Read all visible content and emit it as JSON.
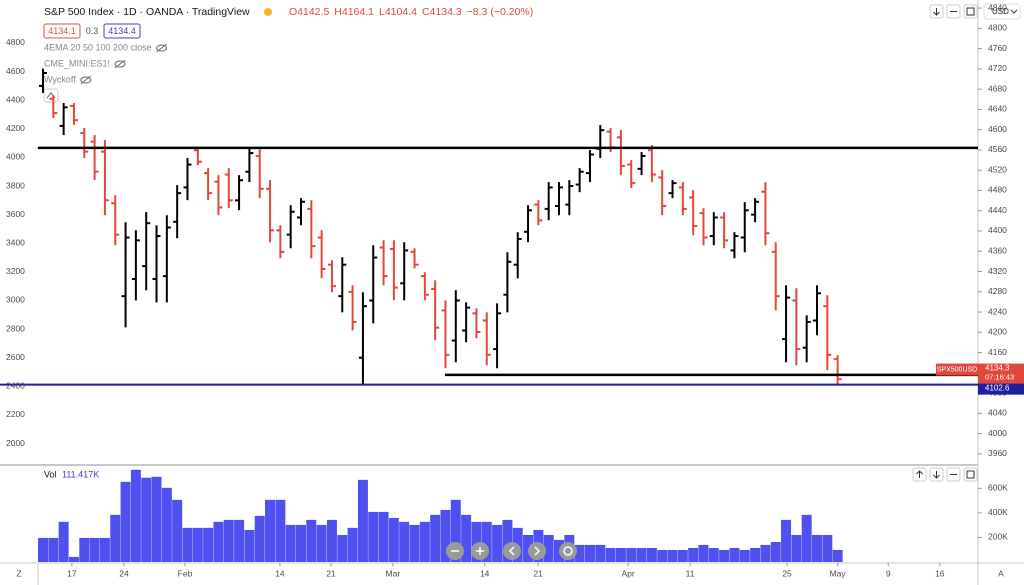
{
  "chart_data": [
    {
      "type": "ohlc",
      "title": "S&P 500 Index · 1D · OANDA · TradingView",
      "legend_values": [
        "O4142.5",
        "H4164.1",
        "L4104.4",
        "C4134.3",
        "−8.3 (−0.20%)"
      ],
      "bid": "4134.1",
      "spread": "0.3",
      "ask": "4134.4",
      "indicators": [
        "4EMA 20 50 100 200 close",
        "CME_MINI:ES1!",
        "Wyckoff"
      ],
      "currency": "USD",
      "up_color": "#000000",
      "down_color": "#e0483e",
      "high": [
        4620,
        4436,
        4380,
        4380,
        4205,
        4156,
        4121,
        3736,
        3547,
        3491,
        3617,
        3526,
        3596,
        3806,
        3995,
        4072,
        3925,
        3876,
        3925,
        3876,
        4065,
        4065,
        3841,
        3526,
        3666,
        3715,
        3701,
        3491,
        3281,
        3302,
        3106,
        3057,
        3386,
        3421,
        3421,
        3407,
        3365,
        3197,
        3141,
        3001,
        3071,
        2987,
        2945,
        2917,
        2980,
        3337,
        3477,
        3666,
        3701,
        3827,
        3827,
        3841,
        3925,
        4051,
        4226,
        4205,
        4191,
        3981,
        4037,
        4086,
        3911,
        3841,
        3827,
        3771,
        3645,
        3617,
        3617,
        3477,
        3687,
        3715,
        3827,
        3407,
        3106,
        3085,
        2896,
        3106,
        3036,
        2617
      ],
      "low": [
        4450,
        4275,
        4156,
        4226,
        3995,
        3841,
        3596,
        3386,
        2812,
        3001,
        3071,
        2987,
        2987,
        3435,
        3701,
        3946,
        3701,
        3596,
        3645,
        3631,
        3827,
        3715,
        3407,
        3295,
        3365,
        3526,
        3295,
        3155,
        3057,
        2917,
        2791,
        2406,
        2840,
        3106,
        3001,
        3001,
        3225,
        3001,
        2722,
        2526,
        2568,
        2708,
        2736,
        2547,
        2526,
        2917,
        3155,
        3407,
        3526,
        3561,
        3596,
        3596,
        3757,
        3827,
        3995,
        4037,
        3876,
        3785,
        3876,
        3827,
        3596,
        3715,
        3596,
        3456,
        3386,
        3386,
        3365,
        3295,
        3337,
        3547,
        3386,
        2931,
        2568,
        2547,
        2568,
        2757,
        2513,
        2406
      ],
      "open": [
        4500,
        4410,
        4220,
        4360,
        4170,
        4110,
        4040,
        3680,
        3030,
        3150,
        3240,
        3150,
        3170,
        3550,
        3790,
        4050,
        3890,
        3830,
        3880,
        3700,
        3900,
        4010,
        3780,
        3490,
        3460,
        3580,
        3640,
        3440,
        3250,
        3030,
        3060,
        2600,
        3000,
        3370,
        3360,
        3120,
        3340,
        3170,
        3080,
        2930,
        2720,
        2790,
        2910,
        2860,
        2660,
        3040,
        3250,
        3480,
        3670,
        3640,
        3660,
        3670,
        3810,
        3890,
        4060,
        4180,
        4140,
        3950,
        3920,
        4050,
        3860,
        3750,
        3790,
        3720,
        3610,
        3450,
        3580,
        3350,
        3440,
        3600,
        3760,
        3340,
        2730,
        3000,
        2670,
        2860,
        2960,
        2590
      ],
      "close": [
        4590,
        4310,
        4350,
        4260,
        4040,
        3900,
        3700,
        3460,
        3440,
        3420,
        3540,
        3450,
        3510,
        3750,
        3950,
        3970,
        3750,
        3650,
        3700,
        3840,
        4030,
        3780,
        3490,
        3340,
        3620,
        3690,
        3380,
        3220,
        3100,
        3250,
        2850,
        2960,
        3300,
        3170,
        3090,
        3350,
        3250,
        3040,
        2810,
        2620,
        3000,
        2950,
        2780,
        2620,
        2910,
        3270,
        3430,
        3630,
        3560,
        3790,
        3790,
        3800,
        3900,
        4020,
        4190,
        4070,
        3940,
        3820,
        4010,
        3880,
        3660,
        3820,
        3640,
        3520,
        3440,
        3580,
        3420,
        3450,
        3630,
        3690,
        3470,
        3030,
        3020,
        2660,
        2850,
        3050,
        2620,
        2450
      ],
      "ylim": [
        1850,
        5100
      ],
      "yticks": [
        4800,
        4600,
        4400,
        4200,
        4000,
        3800,
        3600,
        3400,
        3200,
        3000,
        2800,
        2600,
        2400,
        2200,
        2000
      ],
      "y2lim": [
        3938,
        4856
      ],
      "y2ticks": [
        4840,
        4800,
        4760,
        4720,
        4680,
        4640,
        4600,
        4560,
        4520,
        4480,
        4440,
        4400,
        4360,
        4320,
        4280,
        4240,
        4200,
        4160,
        4120,
        4080,
        4040,
        4000,
        3960
      ],
      "xticks": [
        {
          "value": 2.8,
          "label": "17"
        },
        {
          "value": 7.85,
          "label": "24"
        },
        {
          "value": 13.76,
          "label": "Feb"
        },
        {
          "value": 22.96,
          "label": "14"
        },
        {
          "value": 27.9,
          "label": "21"
        },
        {
          "value": 33.9,
          "label": "Mar"
        },
        {
          "value": 42.8,
          "label": "14"
        },
        {
          "value": 47.97,
          "label": "21"
        },
        {
          "value": 56.7,
          "label": "Apr"
        },
        {
          "value": 62.7,
          "label": "11"
        },
        {
          "value": 72.1,
          "label": "25"
        },
        {
          "value": 77.0,
          "label": "May"
        },
        {
          "value": 81.9,
          "label": "9"
        },
        {
          "value": 86.9,
          "label": "16"
        }
      ],
      "hlines": [
        {
          "value": 4564,
          "color": "#000000",
          "from": -0.5
        },
        {
          "value": 4116,
          "color": "#000000",
          "from": 38.95
        }
      ],
      "price_label": {
        "symbol": "SPX500USD",
        "price": 4134.3,
        "countdown": "07:16:43",
        "color": "#e0483e"
      },
      "line_label": {
        "value": 4102.6,
        "color": "#1e1e9e"
      },
      "corner_left": "Z",
      "corner_right": "A"
    },
    {
      "type": "bar",
      "title": "Vol",
      "current": "111.417K",
      "color": "#5050f0",
      "values": [
        196000,
        196000,
        327000,
        41000,
        196000,
        196000,
        196000,
        384000,
        653000,
        751000,
        686000,
        694000,
        604000,
        506000,
        278000,
        278000,
        278000,
        327000,
        343000,
        343000,
        261000,
        376000,
        506000,
        506000,
        302000,
        302000,
        343000,
        302000,
        343000,
        220000,
        278000,
        669000,
        408000,
        408000,
        359000,
        327000,
        302000,
        327000,
        384000,
        424000,
        506000,
        384000,
        327000,
        327000,
        302000,
        343000,
        278000,
        220000,
        261000,
        220000,
        180000,
        220000,
        139000,
        139000,
        139000,
        114000,
        114000,
        114000,
        114000,
        114000,
        98000,
        98000,
        98000,
        114000,
        139000,
        114000,
        98000,
        114000,
        98000,
        114000,
        139000,
        163000,
        343000,
        220000,
        384000,
        220000,
        220000,
        98000
      ],
      "ylim": [
        0,
        790000
      ],
      "yticks": [
        {
          "value": 600000,
          "label": "600K"
        },
        {
          "value": 400000,
          "label": "400K"
        },
        {
          "value": 200000,
          "label": "200K"
        }
      ]
    }
  ]
}
